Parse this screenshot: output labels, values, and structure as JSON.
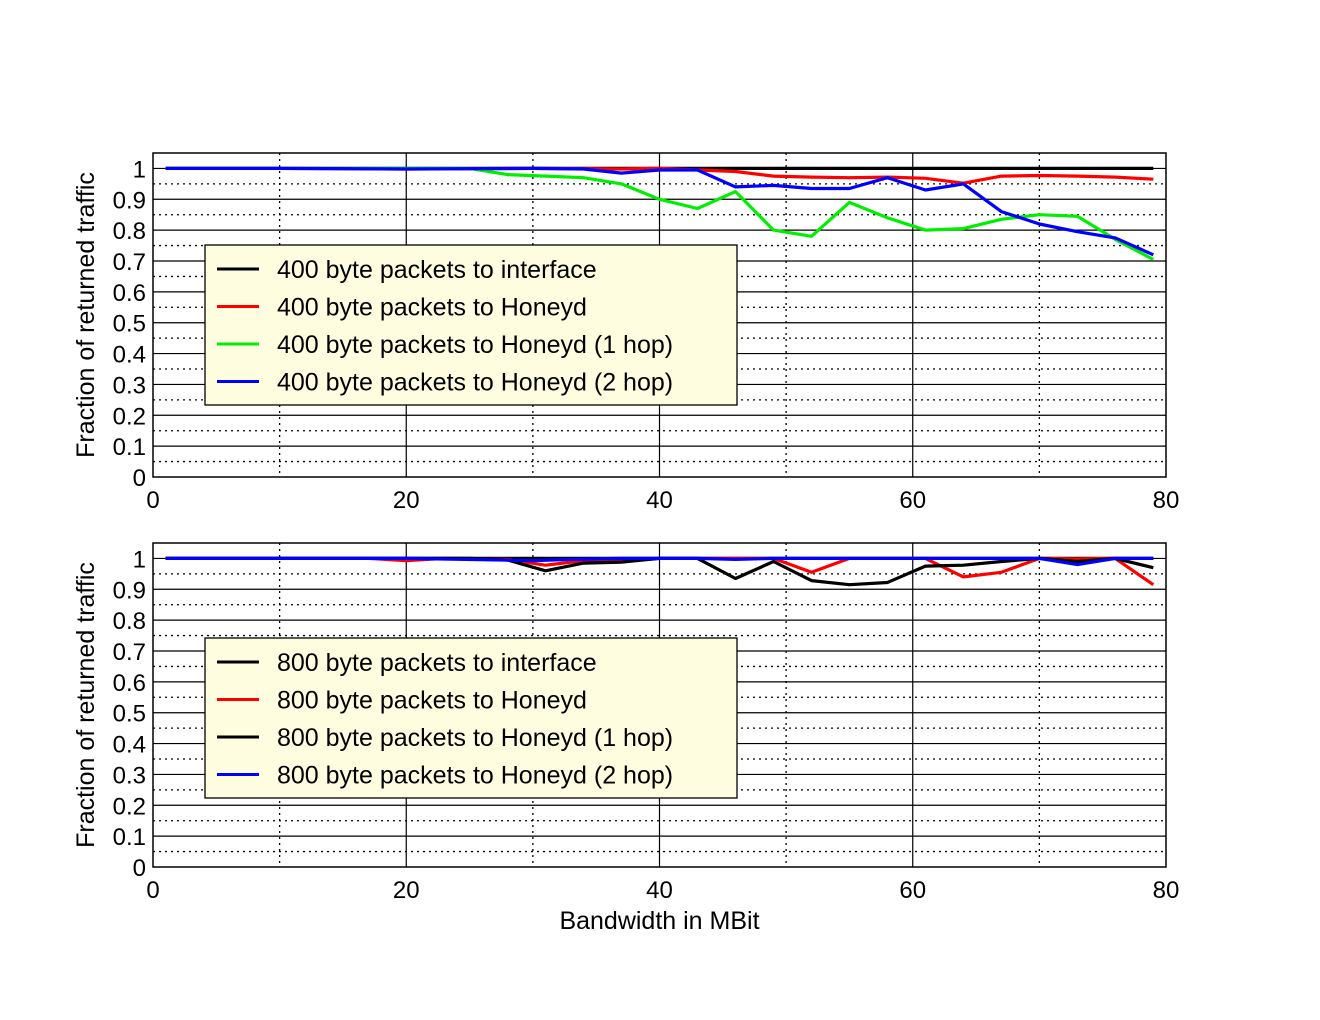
{
  "chart_data": [
    {
      "type": "line",
      "xlabel": "",
      "ylabel": "Fraction of returned traffic",
      "xlim": [
        0,
        80
      ],
      "ylim": [
        0,
        1.05
      ],
      "x_ticks": [
        "0",
        "20",
        "40",
        "60",
        "80"
      ],
      "y_ticks": [
        "0",
        "0.1",
        "0.2",
        "0.3",
        "0.4",
        "0.5",
        "0.6",
        "0.7",
        "0.8",
        "0.9",
        "1"
      ],
      "grid": true,
      "legend_position": "center-left",
      "series": [
        {
          "name": "400 byte packets to interface",
          "color": "#000000",
          "points": [
            [
              1,
              1
            ],
            [
              10,
              1
            ],
            [
              20,
              1
            ],
            [
              30,
              1
            ],
            [
              40,
              1
            ],
            [
              50,
              1
            ],
            [
              60,
              1
            ],
            [
              70,
              1
            ],
            [
              79,
              1
            ]
          ]
        },
        {
          "name": "400 byte packets to Honeyd",
          "color": "#ff0000",
          "points": [
            [
              1,
              1
            ],
            [
              10,
              1
            ],
            [
              20,
              0.998
            ],
            [
              30,
              1
            ],
            [
              37,
              0.998
            ],
            [
              40,
              1
            ],
            [
              46,
              0.99
            ],
            [
              49,
              0.975
            ],
            [
              52,
              0.972
            ],
            [
              55,
              0.97
            ],
            [
              58,
              0.972
            ],
            [
              61,
              0.968
            ],
            [
              64,
              0.952
            ],
            [
              67,
              0.975
            ],
            [
              70,
              0.977
            ],
            [
              73,
              0.975
            ],
            [
              76,
              0.972
            ],
            [
              79,
              0.965
            ]
          ]
        },
        {
          "name": "400 byte packets to Honeyd (1 hop)",
          "color": "#00ee00",
          "points": [
            [
              1,
              1
            ],
            [
              10,
              1
            ],
            [
              20,
              1
            ],
            [
              25,
              1
            ],
            [
              28,
              0.98
            ],
            [
              31,
              0.975
            ],
            [
              34,
              0.97
            ],
            [
              37,
              0.95
            ],
            [
              40,
              0.9
            ],
            [
              43,
              0.87
            ],
            [
              46,
              0.925
            ],
            [
              49,
              0.8
            ],
            [
              52,
              0.78
            ],
            [
              55,
              0.89
            ],
            [
              58,
              0.84
            ],
            [
              61,
              0.8
            ],
            [
              64,
              0.805
            ],
            [
              67,
              0.835
            ],
            [
              70,
              0.85
            ],
            [
              73,
              0.845
            ],
            [
              76,
              0.77
            ],
            [
              79,
              0.705
            ]
          ]
        },
        {
          "name": "400 byte packets to Honeyd (2 hop)",
          "color": "#0000ff",
          "points": [
            [
              1,
              1
            ],
            [
              10,
              1
            ],
            [
              20,
              0.998
            ],
            [
              30,
              1
            ],
            [
              34,
              0.998
            ],
            [
              37,
              0.985
            ],
            [
              40,
              0.995
            ],
            [
              43,
              0.995
            ],
            [
              46,
              0.94
            ],
            [
              49,
              0.945
            ],
            [
              52,
              0.935
            ],
            [
              55,
              0.935
            ],
            [
              58,
              0.97
            ],
            [
              61,
              0.93
            ],
            [
              64,
              0.95
            ],
            [
              67,
              0.86
            ],
            [
              70,
              0.82
            ],
            [
              73,
              0.795
            ],
            [
              76,
              0.775
            ],
            [
              79,
              0.72
            ]
          ]
        }
      ]
    },
    {
      "type": "line",
      "xlabel": "Bandwidth in MBit",
      "ylabel": "Fraction of returned traffic",
      "xlim": [
        0,
        80
      ],
      "ylim": [
        0,
        1.05
      ],
      "x_ticks": [
        "0",
        "20",
        "40",
        "60",
        "80"
      ],
      "y_ticks": [
        "0",
        "0.1",
        "0.2",
        "0.3",
        "0.4",
        "0.5",
        "0.6",
        "0.7",
        "0.8",
        "0.9",
        "1"
      ],
      "grid": true,
      "legend_position": "center-left",
      "series": [
        {
          "name": "800 byte packets to interface",
          "color": "#000000",
          "points": [
            [
              1,
              1
            ],
            [
              10,
              1
            ],
            [
              20,
              1
            ],
            [
              30,
              1
            ],
            [
              40,
              1
            ],
            [
              50,
              1
            ],
            [
              60,
              1
            ],
            [
              70,
              1
            ],
            [
              79,
              1
            ]
          ]
        },
        {
          "name": "800 byte packets to Honeyd",
          "color": "#ff0000",
          "points": [
            [
              1,
              1
            ],
            [
              10,
              1
            ],
            [
              17,
              1
            ],
            [
              20,
              0.993
            ],
            [
              23,
              1
            ],
            [
              28,
              0.997
            ],
            [
              31,
              0.978
            ],
            [
              34,
              0.993
            ],
            [
              37,
              0.997
            ],
            [
              40,
              1
            ],
            [
              46,
              1
            ],
            [
              49,
              1
            ],
            [
              52,
              0.955
            ],
            [
              55,
              1
            ],
            [
              58,
              1
            ],
            [
              61,
              1
            ],
            [
              64,
              0.94
            ],
            [
              67,
              0.955
            ],
            [
              70,
              1
            ],
            [
              73,
              0.998
            ],
            [
              76,
              1
            ],
            [
              79,
              0.915
            ]
          ]
        },
        {
          "name": "800 byte packets to Honeyd (1 hop)",
          "color": "#000000",
          "points": [
            [
              1,
              1
            ],
            [
              10,
              1
            ],
            [
              20,
              1
            ],
            [
              25,
              1
            ],
            [
              28,
              0.995
            ],
            [
              31,
              0.96
            ],
            [
              34,
              0.985
            ],
            [
              37,
              0.988
            ],
            [
              40,
              1
            ],
            [
              43,
              1
            ],
            [
              46,
              0.935
            ],
            [
              49,
              0.99
            ],
            [
              52,
              0.928
            ],
            [
              55,
              0.915
            ],
            [
              58,
              0.922
            ],
            [
              61,
              0.975
            ],
            [
              64,
              0.978
            ],
            [
              67,
              0.99
            ],
            [
              70,
              1
            ],
            [
              73,
              0.99
            ],
            [
              76,
              1
            ],
            [
              79,
              0.97
            ]
          ]
        },
        {
          "name": "800 byte packets to Honeyd (2 hop)",
          "color": "#0000ff",
          "points": [
            [
              1,
              1
            ],
            [
              10,
              1
            ],
            [
              20,
              1
            ],
            [
              30,
              0.993
            ],
            [
              33,
              0.997
            ],
            [
              37,
              1
            ],
            [
              40,
              1
            ],
            [
              43,
              1
            ],
            [
              46,
              0.997
            ],
            [
              49,
              1
            ],
            [
              52,
              1
            ],
            [
              55,
              1
            ],
            [
              58,
              1
            ],
            [
              61,
              1
            ],
            [
              64,
              1
            ],
            [
              67,
              1
            ],
            [
              70,
              1
            ],
            [
              73,
              0.98
            ],
            [
              76,
              1
            ],
            [
              79,
              1
            ]
          ]
        }
      ]
    }
  ]
}
